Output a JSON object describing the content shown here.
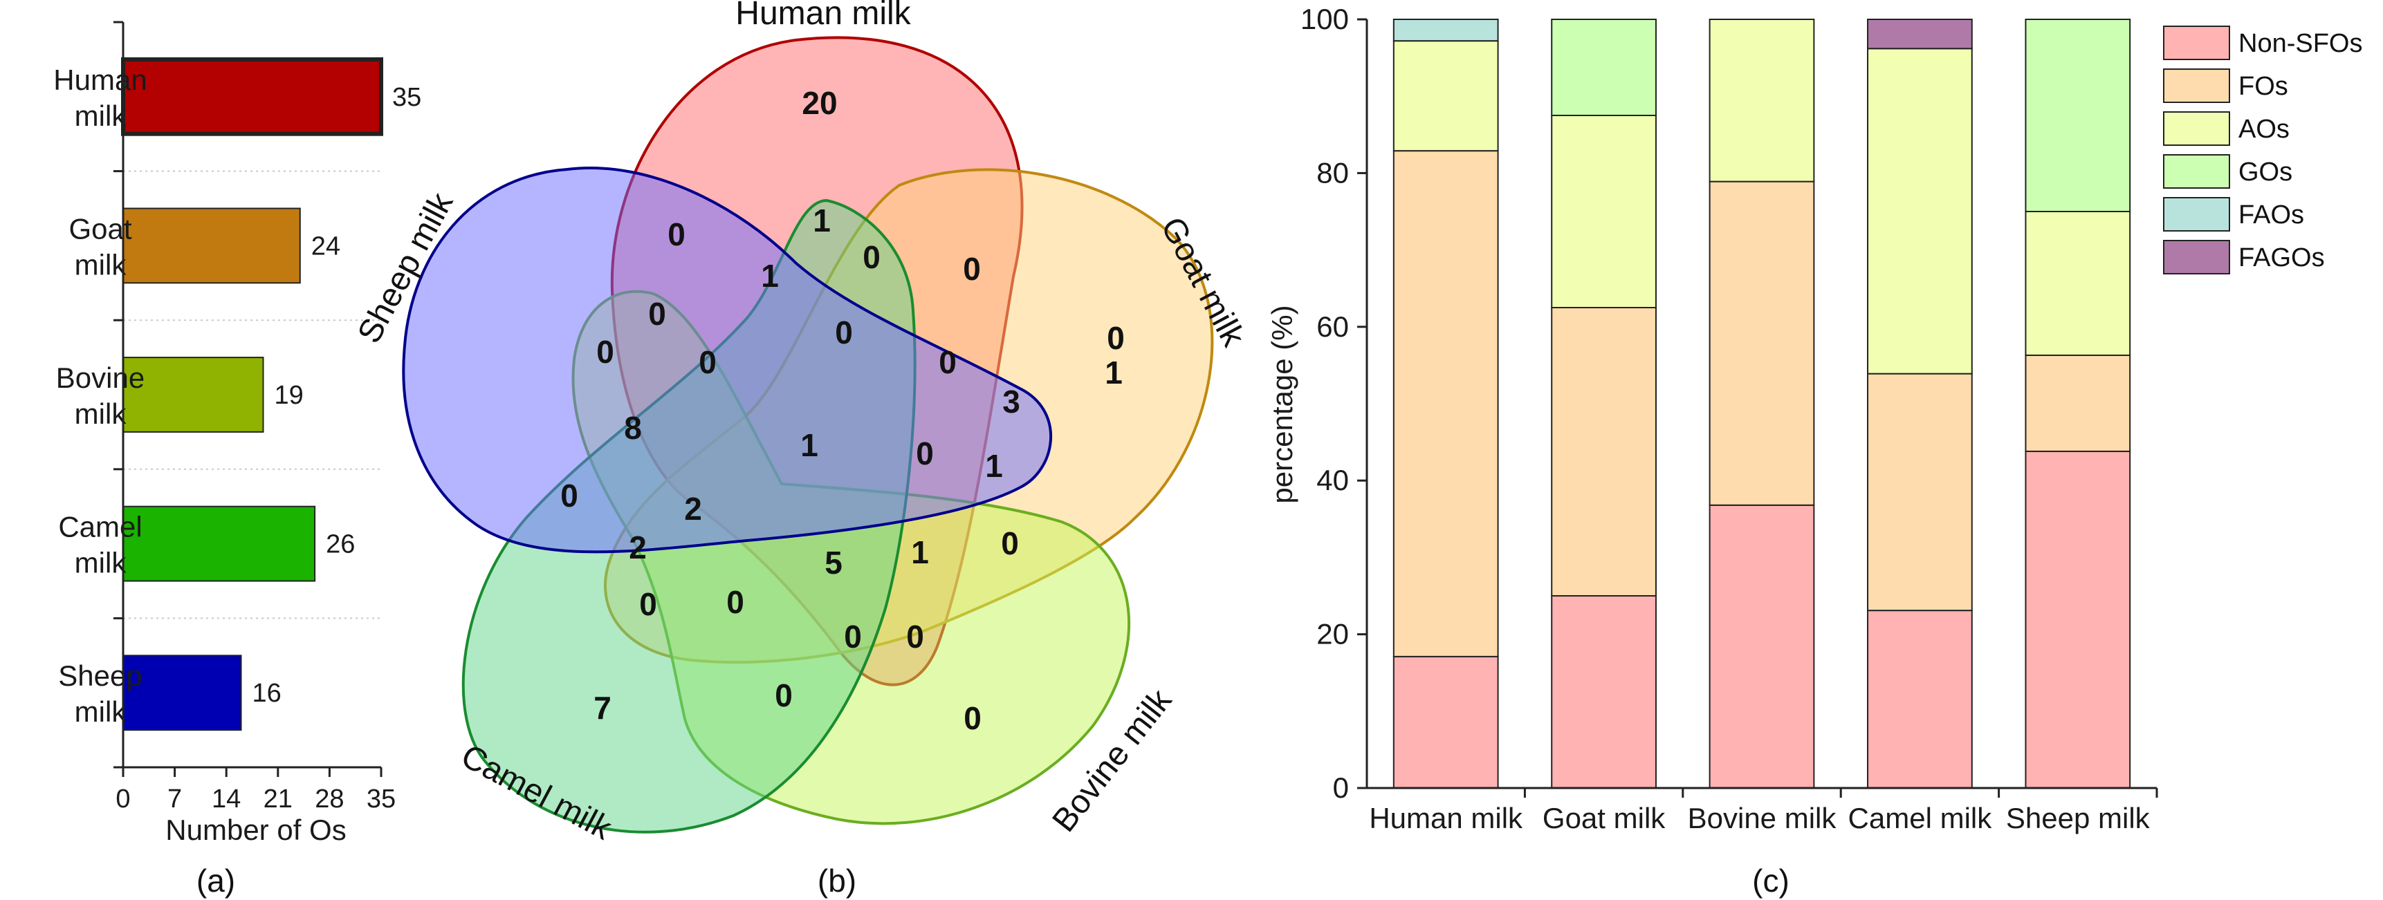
{
  "chart_data": [
    {
      "panel": "(a)",
      "type": "bar",
      "orientation": "horizontal",
      "categories": [
        [
          "Human",
          "milk"
        ],
        [
          "Goat",
          "milk"
        ],
        [
          "Bovine",
          "milk"
        ],
        [
          "Camel",
          "milk"
        ],
        [
          "Sheep",
          "milk"
        ]
      ],
      "values": [
        35,
        24,
        19,
        26,
        16
      ],
      "colors": [
        "#b30000",
        "#c07a10",
        "#8fb300",
        "#19b300",
        "#0000b3"
      ],
      "xlabel": "Number of Os",
      "xlim": [
        0,
        35
      ],
      "xticks": [
        "0",
        "7",
        "14",
        "21",
        "28",
        "35"
      ]
    },
    {
      "panel": "(b)",
      "type": "venn",
      "sets": [
        {
          "name": "Human milk",
          "color": "#ff6b6b",
          "stroke": "#b00000"
        },
        {
          "name": "Goat milk",
          "color": "#ffd27a",
          "stroke": "#c08a10"
        },
        {
          "name": "Bovine milk",
          "color": "#c6f55a",
          "stroke": "#6aae20"
        },
        {
          "name": "Camel milk",
          "color": "#5fd68a",
          "stroke": "#1a8c30"
        },
        {
          "name": "Sheep milk",
          "color": "#6b6bff",
          "stroke": "#00008c"
        }
      ],
      "region_counts": [
        "20",
        "0",
        "1",
        "0",
        "0",
        "1",
        "0",
        "0",
        "0",
        "0",
        "0",
        "0",
        "3",
        "1",
        "8",
        "0",
        "1",
        "0",
        "2",
        "0",
        "1",
        "5",
        "2",
        "0",
        "0",
        "0",
        "7",
        "0",
        "0",
        "0",
        "1"
      ]
    },
    {
      "panel": "(c)",
      "type": "bar",
      "stacked": true,
      "categories": [
        "Human milk",
        "Goat milk",
        "Bovine milk",
        "Camel milk",
        "Sheep milk"
      ],
      "series": [
        {
          "name": "Non-SFOs",
          "color": "#ffb3b3",
          "values": [
            17.1,
            25.0,
            36.8,
            23.1,
            43.8
          ]
        },
        {
          "name": "FOs",
          "color": "#ffdcad",
          "values": [
            65.8,
            37.5,
            42.1,
            30.8,
            12.5
          ]
        },
        {
          "name": "AOs",
          "color": "#f2ffb3",
          "values": [
            14.3,
            25.0,
            21.1,
            42.3,
            18.7
          ]
        },
        {
          "name": "GOs",
          "color": "#cdffb3",
          "values": [
            0,
            12.5,
            0,
            0,
            25.0
          ]
        },
        {
          "name": "FAOs",
          "color": "#b8e3dd",
          "values": [
            2.8,
            0,
            0,
            0,
            0
          ]
        },
        {
          "name": "FAGOs",
          "color": "#b07aa8",
          "values": [
            0,
            0,
            0,
            3.8,
            0
          ]
        }
      ],
      "ylabel": "percentage (%)",
      "ylim": [
        0,
        100
      ],
      "yticks": [
        "0",
        "20",
        "40",
        "60",
        "80",
        "100"
      ]
    }
  ]
}
